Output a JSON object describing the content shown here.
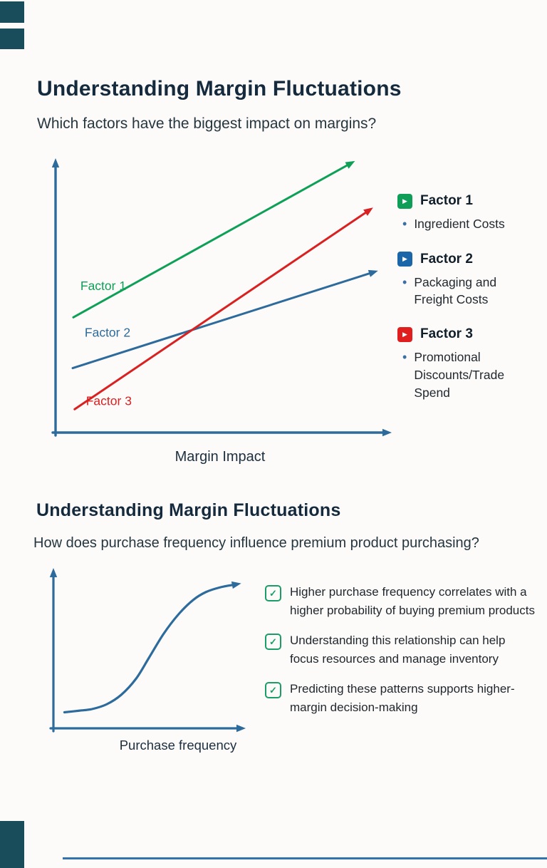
{
  "page": {
    "accent_color": "#1a4d5c",
    "divider_color": "#3273ae",
    "background": "#fcfbfa"
  },
  "slide1": {
    "title": "Understanding Margin Fluctuations",
    "subtitle": "Which factors have the biggest impact on margins?",
    "xlabel": "Margin Impact",
    "legend": [
      {
        "label": "Factor 1",
        "desc": "Ingredient Costs",
        "color": "#0e9e57",
        "icon": "play-icon"
      },
      {
        "label": "Factor 2",
        "desc": "Packaging and Freight Costs",
        "color": "#1b66a8",
        "icon": "play-icon"
      },
      {
        "label": "Factor 3",
        "desc": "Promotional Discounts/Trade Spend",
        "color": "#e01e1e",
        "icon": "play-icon"
      }
    ]
  },
  "slide2": {
    "title": "Understanding Margin Fluctuations",
    "subtitle": "How does purchase frequency influence premium product purchasing?",
    "xlabel": "Purchase frequency",
    "check_color": "#1a9e68",
    "checklist": [
      "Higher purchase frequency correlates with a higher probability of buying premium products",
      "Understanding this relationship can help focus resources and manage inventory",
      "Predicting these patterns supports higher-margin decision-making"
    ]
  },
  "chart_data": [
    {
      "type": "line",
      "title": "Understanding Margin Fluctuations",
      "subtitle": "Which factors have the biggest impact on margins?",
      "xlabel": "Margin Impact",
      "ylabel": "",
      "grid": false,
      "legend_position": "right",
      "axis_color": "#2d6b9c",
      "axis_range_note": "conceptual chart, axes unlabeled; coordinates normalized 0-1",
      "series": [
        {
          "name": "Factor 1",
          "legend_desc": "Ingredient Costs",
          "color": "#0fa057",
          "from": [
            0.054,
            0.42
          ],
          "to": [
            0.91,
            0.99
          ],
          "label_at": [
            0.145,
            0.52
          ]
        },
        {
          "name": "Factor 2",
          "legend_desc": "Packaging and Freight Costs",
          "color": "#2d6b9c",
          "from": [
            0.052,
            0.235
          ],
          "to": [
            0.98,
            0.59
          ],
          "label_at": [
            0.158,
            0.35
          ]
        },
        {
          "name": "Factor 3",
          "legend_desc": "Promotional Discounts/Trade Spend",
          "color": "#d92121",
          "from": [
            0.058,
            0.085
          ],
          "to": [
            0.965,
            0.82
          ],
          "label_at": [
            0.162,
            0.1
          ]
        }
      ]
    },
    {
      "type": "line",
      "title": "Understanding Margin Fluctuations",
      "subtitle": "How does purchase frequency influence premium product purchasing?",
      "xlabel": "Purchase frequency",
      "ylabel": "",
      "grid": false,
      "axis_color": "#2d6b9c",
      "axis_range_note": "conceptual S-curve, axes unlabeled; coordinates normalized 0-1",
      "series": [
        {
          "name": "Probability of buying premium products",
          "color": "#2d6b9c",
          "shape": "sigmoid",
          "points": [
            [
              0.06,
              0.1
            ],
            [
              0.14,
              0.11
            ],
            [
              0.21,
              0.12
            ],
            [
              0.29,
              0.15
            ],
            [
              0.37,
              0.21
            ],
            [
              0.45,
              0.31
            ],
            [
              0.52,
              0.44
            ],
            [
              0.6,
              0.59
            ],
            [
              0.68,
              0.71
            ],
            [
              0.76,
              0.8
            ],
            [
              0.83,
              0.85
            ],
            [
              0.91,
              0.88
            ],
            [
              0.98,
              0.895
            ]
          ]
        }
      ]
    }
  ]
}
